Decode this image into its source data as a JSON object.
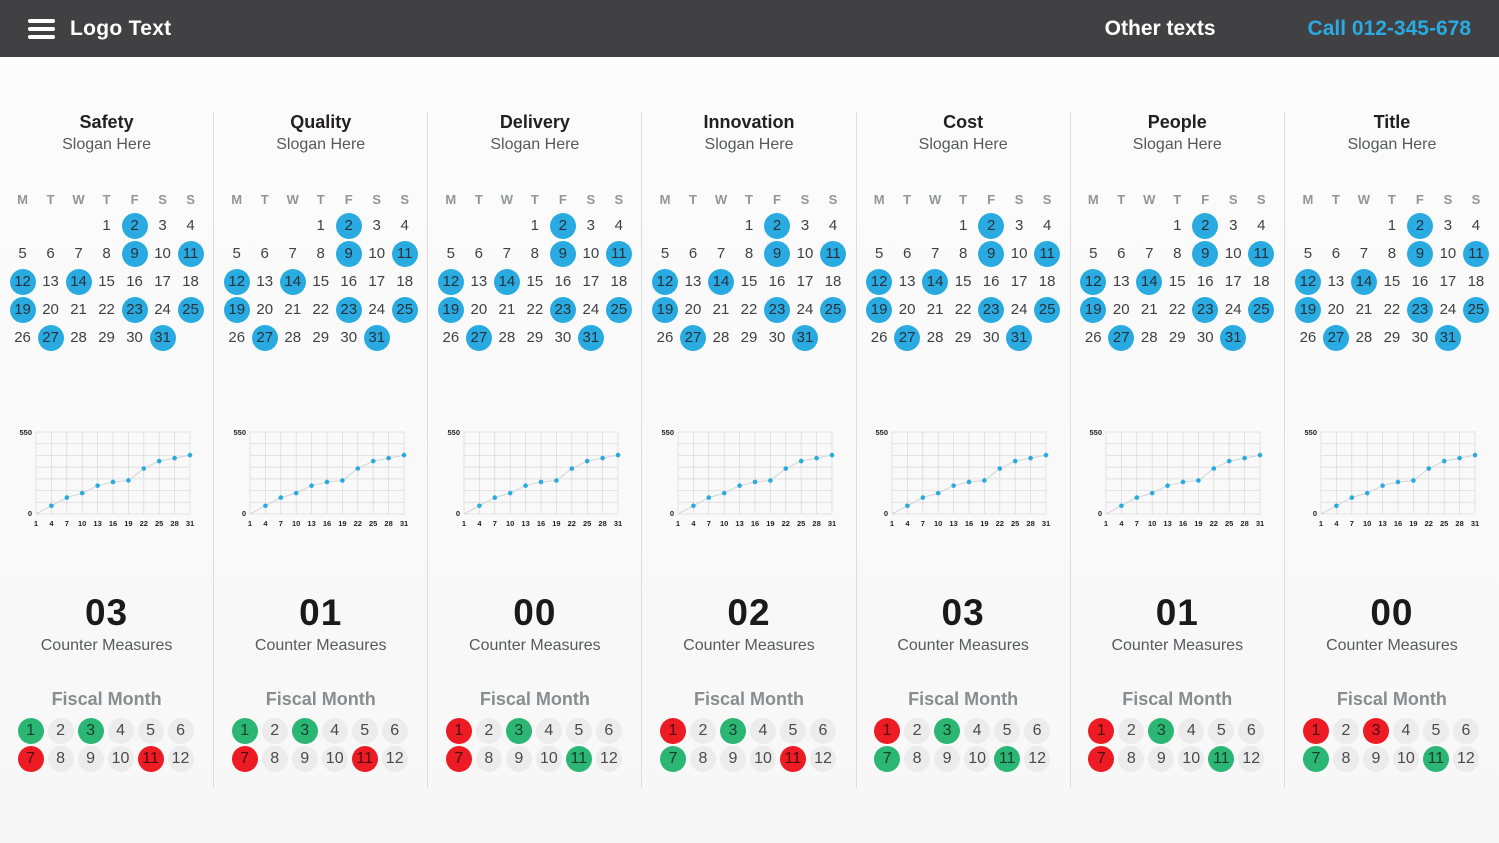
{
  "header": {
    "logo": "Logo Text",
    "other": "Other texts",
    "call": "Call 012-345-678"
  },
  "labels": {
    "slogan": "Slogan Here",
    "counter": "Counter Measures",
    "fiscal": "Fiscal Month"
  },
  "colors": {
    "accent_blue": "#29abe2",
    "green": "#2bb673",
    "red": "#ed1c24",
    "neutral_circle": "#ececec",
    "topbar_bg": "#414042"
  },
  "calendar": {
    "weekdays": [
      "M",
      "T",
      "W",
      "T",
      "F",
      "S",
      "S"
    ],
    "days_in_month": 31,
    "start_offset": 3,
    "highlighted_days": [
      2,
      9,
      11,
      12,
      14,
      19,
      23,
      25,
      27,
      31
    ]
  },
  "fiscal_months": [
    1,
    2,
    3,
    4,
    5,
    6,
    7,
    8,
    9,
    10,
    11,
    12
  ],
  "chart_data": {
    "type": "line",
    "title": "",
    "x": [
      1,
      4,
      7,
      10,
      13,
      16,
      19,
      22,
      25,
      28,
      31
    ],
    "values": [
      0,
      55,
      110,
      140,
      190,
      215,
      225,
      305,
      355,
      375,
      395
    ],
    "xticks": [
      1,
      4,
      7,
      10,
      13,
      16,
      19,
      22,
      25,
      28,
      31
    ],
    "yticks": [
      0,
      550
    ],
    "ylim": [
      0,
      550
    ],
    "grid": true,
    "legend": false,
    "point_color": "#29abe2",
    "line_color": "#d2d4d5",
    "note": "same cumulative trend chart repeated in all 7 columns"
  },
  "columns": [
    {
      "title": "Safety",
      "counter": "03",
      "month_status": {
        "1": "green",
        "3": "green",
        "7": "red",
        "11": "red"
      }
    },
    {
      "title": "Quality",
      "counter": "01",
      "month_status": {
        "1": "green",
        "3": "green",
        "7": "red",
        "11": "red"
      }
    },
    {
      "title": "Delivery",
      "counter": "00",
      "month_status": {
        "1": "red",
        "3": "green",
        "7": "red",
        "11": "green"
      }
    },
    {
      "title": "Innovation",
      "counter": "02",
      "month_status": {
        "1": "red",
        "3": "green",
        "7": "green",
        "11": "red"
      }
    },
    {
      "title": "Cost",
      "counter": "03",
      "month_status": {
        "1": "red",
        "3": "green",
        "7": "green",
        "11": "green"
      }
    },
    {
      "title": "People",
      "counter": "01",
      "month_status": {
        "1": "red",
        "3": "green",
        "7": "red",
        "11": "green"
      }
    },
    {
      "title": "Title",
      "counter": "00",
      "month_status": {
        "1": "red",
        "3": "red",
        "7": "green",
        "11": "green"
      }
    }
  ]
}
